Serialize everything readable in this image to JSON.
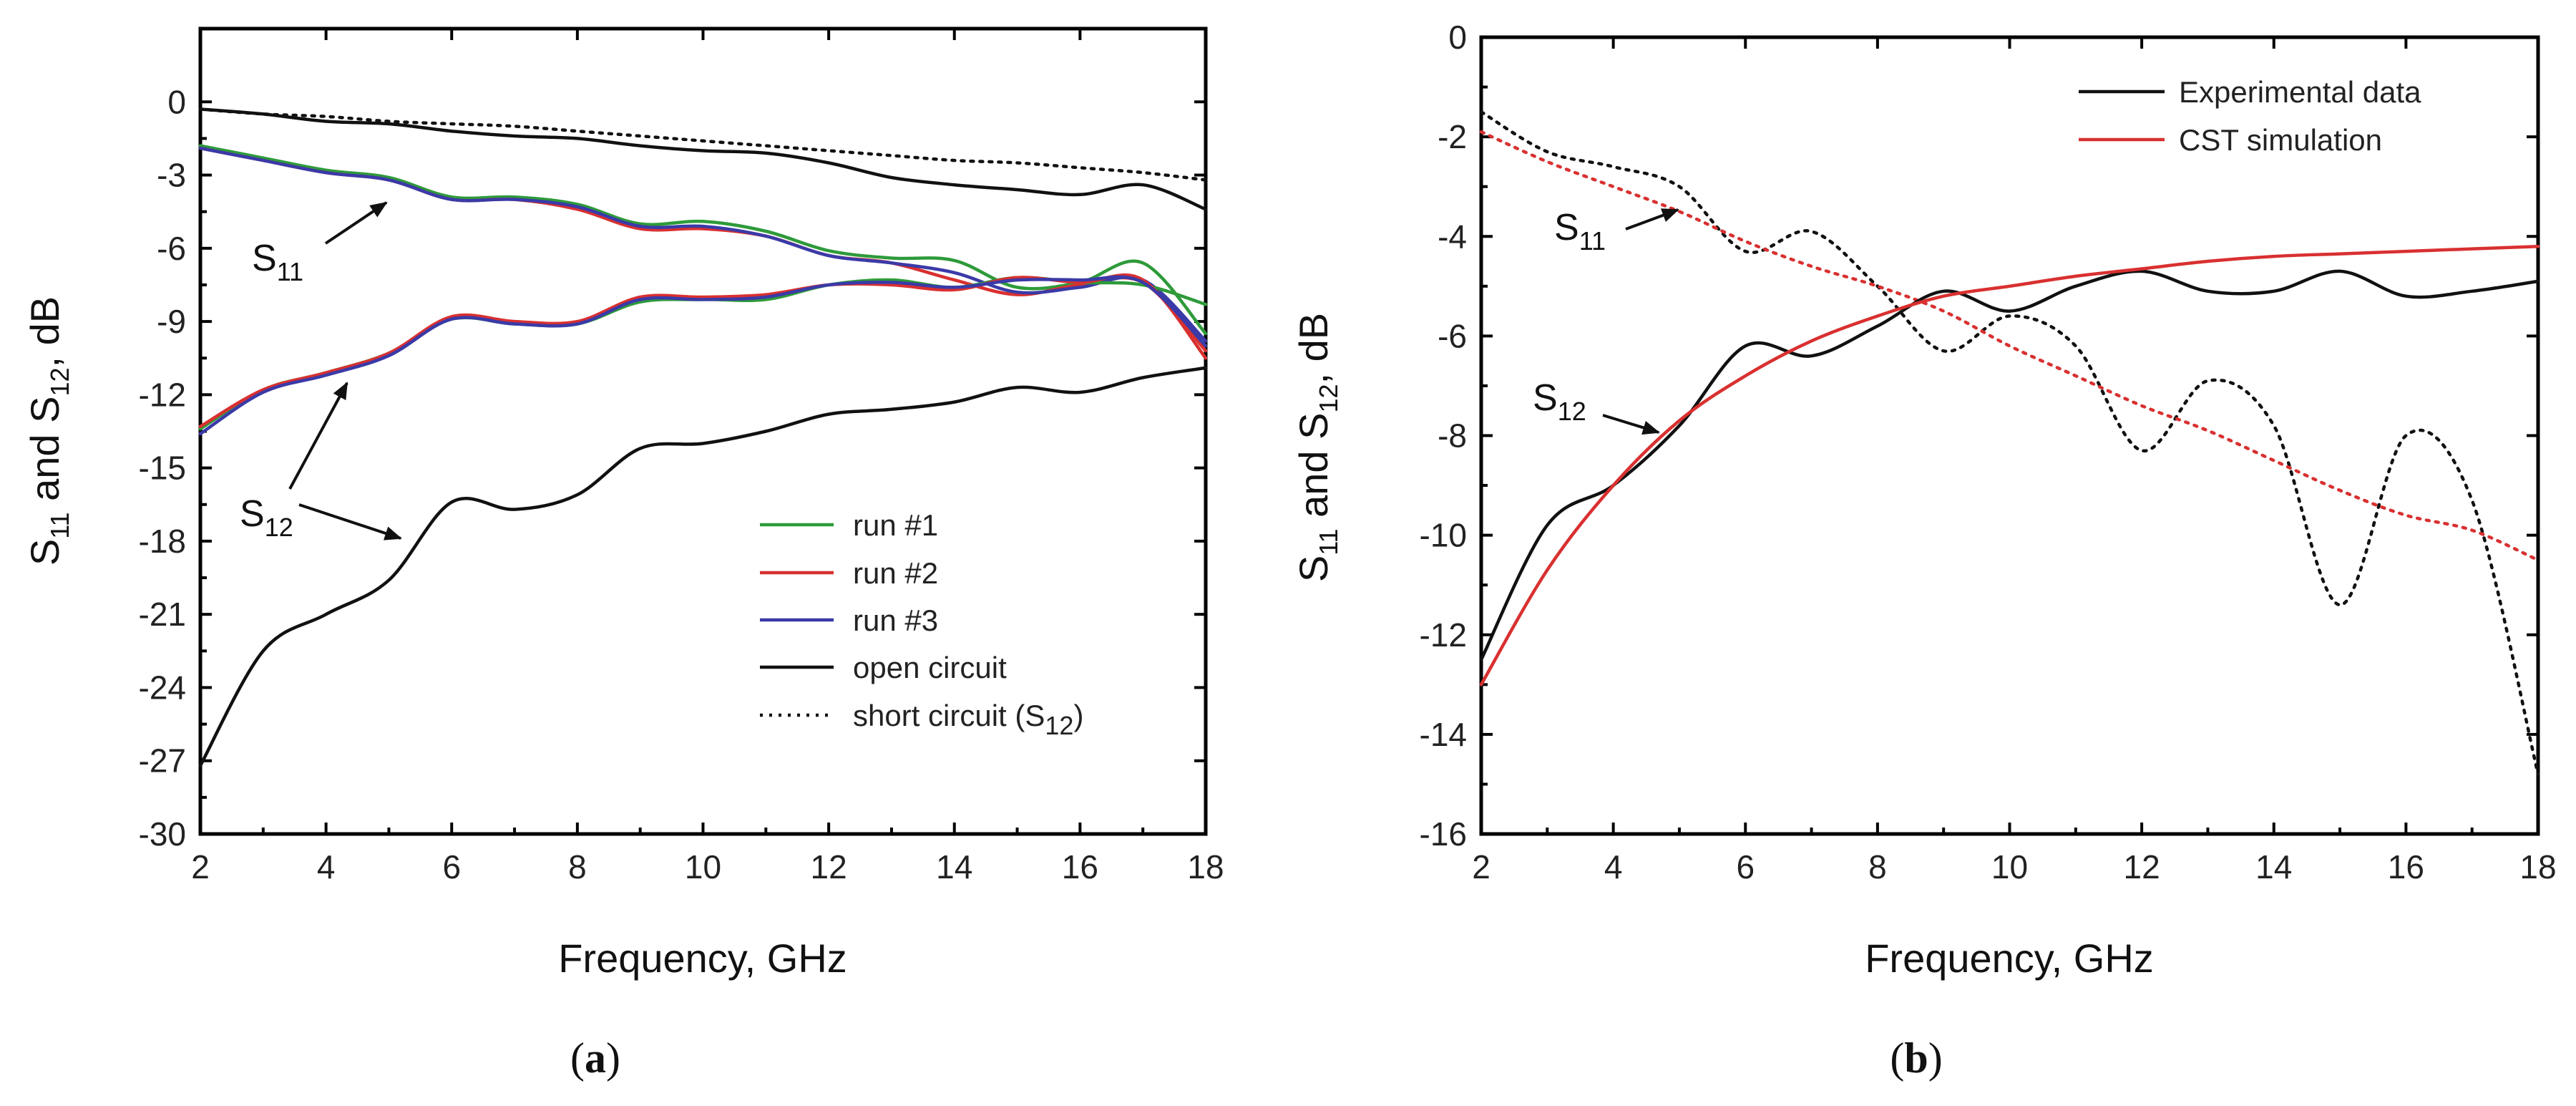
{
  "chart_data": [
    {
      "type": "line",
      "panel_label": "a",
      "xlabel": "Frequency, GHz",
      "ylabel": {
        "prefix": "S",
        "sub1": "11",
        "mid": " and S",
        "sub2": "12",
        "suffix": ", dB"
      },
      "xlim": [
        2,
        18
      ],
      "ylim": [
        -30,
        3
      ],
      "xticks": [
        "2",
        "4",
        "6",
        "8",
        "10",
        "12",
        "14",
        "16",
        "18"
      ],
      "yticks": [
        "0",
        "-3",
        "-6",
        "-9",
        "-12",
        "-15",
        "-18",
        "-21",
        "-24",
        "-27",
        "-30"
      ],
      "x": [
        2,
        3,
        4,
        5,
        6,
        7,
        8,
        9,
        10,
        11,
        12,
        13,
        14,
        15,
        16,
        17,
        18
      ],
      "series": [
        {
          "name": "run #1 (S11)",
          "color": "#2e9a3a",
          "style": "solid",
          "values": [
            -1.8,
            -2.3,
            -2.8,
            -3.1,
            -3.9,
            -3.9,
            -4.2,
            -5.0,
            -4.9,
            -5.3,
            -6.1,
            -6.4,
            -6.5,
            -7.6,
            -7.4,
            -6.6,
            -9.5
          ]
        },
        {
          "name": "run #2 (S11)",
          "color": "#d93030",
          "style": "solid",
          "values": [
            -1.9,
            -2.4,
            -2.9,
            -3.2,
            -4.0,
            -4.0,
            -4.4,
            -5.2,
            -5.2,
            -5.5,
            -6.3,
            -6.6,
            -7.3,
            -7.9,
            -7.5,
            -7.4,
            -10.2
          ]
        },
        {
          "name": "run #3 (S11)",
          "color": "#3a3aa8",
          "style": "solid",
          "values": [
            -1.9,
            -2.4,
            -2.9,
            -3.2,
            -4.0,
            -4.0,
            -4.3,
            -5.1,
            -5.1,
            -5.5,
            -6.3,
            -6.6,
            -7.0,
            -7.8,
            -7.6,
            -7.3,
            -9.8
          ]
        },
        {
          "name": "run #1 (S12)",
          "color": "#2e9a3a",
          "style": "solid",
          "values": [
            -13.4,
            -11.8,
            -11.1,
            -10.3,
            -8.9,
            -9.1,
            -9.1,
            -8.2,
            -8.1,
            -8.1,
            -7.5,
            -7.3,
            -7.6,
            -7.2,
            -7.4,
            -7.5,
            -8.3
          ]
        },
        {
          "name": "run #2 (S12)",
          "color": "#d93030",
          "style": "solid",
          "values": [
            -13.3,
            -11.8,
            -11.1,
            -10.3,
            -8.8,
            -9.0,
            -9.0,
            -8.0,
            -8.0,
            -7.9,
            -7.5,
            -7.5,
            -7.7,
            -7.2,
            -7.4,
            -7.3,
            -10.5
          ]
        },
        {
          "name": "run #3 (S12)",
          "color": "#3a3aa8",
          "style": "solid",
          "values": [
            -13.6,
            -11.9,
            -11.2,
            -10.4,
            -8.9,
            -9.1,
            -9.1,
            -8.1,
            -8.1,
            -8.0,
            -7.5,
            -7.4,
            -7.6,
            -7.3,
            -7.3,
            -7.4,
            -10.0
          ]
        },
        {
          "name": "open circuit (S11)",
          "color": "#111111",
          "style": "solid",
          "values": [
            -0.3,
            -0.5,
            -0.8,
            -0.9,
            -1.2,
            -1.4,
            -1.5,
            -1.8,
            -2.0,
            -2.1,
            -2.5,
            -3.1,
            -3.4,
            -3.6,
            -3.8,
            -3.4,
            -4.4
          ]
        },
        {
          "name": "open circuit (S12)",
          "color": "#111111",
          "style": "solid",
          "values": [
            -27.2,
            -22.5,
            -21.0,
            -19.6,
            -16.4,
            -16.7,
            -16.1,
            -14.2,
            -14.0,
            -13.5,
            -12.8,
            -12.6,
            -12.3,
            -11.7,
            -11.9,
            -11.3,
            -10.9
          ]
        },
        {
          "name": "short circuit (S12)",
          "color": "#111111",
          "style": "dotted",
          "values": [
            -0.3,
            -0.5,
            -0.6,
            -0.8,
            -0.9,
            -1.0,
            -1.2,
            -1.4,
            -1.6,
            -1.8,
            -2.0,
            -2.2,
            -2.4,
            -2.5,
            -2.7,
            -2.9,
            -3.2
          ]
        }
      ],
      "legend": [
        {
          "label": "run #1",
          "color": "#2e9a3a",
          "style": "solid"
        },
        {
          "label": "run #2",
          "color": "#d93030",
          "style": "solid"
        },
        {
          "label": "run #3",
          "color": "#3a3aa8",
          "style": "solid"
        },
        {
          "label": "open circuit",
          "color": "#111111",
          "style": "solid"
        },
        {
          "label": "short circuit (S",
          "sub": "12",
          "tail": ")",
          "color": "#111111",
          "style": "dotted"
        }
      ],
      "annotations": [
        {
          "base": "S",
          "sub": "11"
        },
        {
          "base": "S",
          "sub": "12"
        }
      ]
    },
    {
      "type": "line",
      "panel_label": "b",
      "xlabel": "Frequency, GHz",
      "ylabel": {
        "prefix": "S",
        "sub1": "11",
        "mid": " and S",
        "sub2": "12",
        "suffix": ", dB"
      },
      "xlim": [
        2,
        18
      ],
      "ylim": [
        -16,
        0
      ],
      "xticks": [
        "2",
        "4",
        "6",
        "8",
        "10",
        "12",
        "14",
        "16",
        "18"
      ],
      "yticks": [
        "0",
        "-2",
        "-4",
        "-6",
        "-8",
        "-10",
        "-12",
        "-14",
        "-16"
      ],
      "x": [
        2,
        3,
        4,
        5,
        6,
        7,
        8,
        9,
        10,
        11,
        12,
        13,
        14,
        15,
        16,
        17,
        18
      ],
      "series": [
        {
          "name": "Experimental data (S11)",
          "color": "#111111",
          "style": "dotted",
          "values": [
            -1.5,
            -2.3,
            -2.6,
            -3.0,
            -4.3,
            -3.9,
            -5.0,
            -6.3,
            -5.6,
            -6.2,
            -8.3,
            -6.9,
            -7.8,
            -11.4,
            -8.0,
            -9.3,
            -14.8
          ]
        },
        {
          "name": "CST simulation (S11)",
          "color": "#d93030",
          "style": "dotted",
          "values": [
            -1.9,
            -2.5,
            -3.0,
            -3.5,
            -4.1,
            -4.6,
            -5.0,
            -5.5,
            -6.2,
            -6.8,
            -7.4,
            -7.9,
            -8.5,
            -9.1,
            -9.6,
            -9.9,
            -10.5
          ]
        },
        {
          "name": "Experimental data (S12)",
          "color": "#111111",
          "style": "solid",
          "values": [
            -12.5,
            -9.8,
            -9.0,
            -7.8,
            -6.2,
            -6.4,
            -5.8,
            -5.1,
            -5.5,
            -5.0,
            -4.7,
            -5.1,
            -5.1,
            -4.7,
            -5.2,
            -5.1,
            -4.9
          ]
        },
        {
          "name": "CST simulation (S12)",
          "color": "#d93030",
          "style": "solid",
          "values": [
            -13.0,
            -10.7,
            -9.0,
            -7.7,
            -6.8,
            -6.1,
            -5.6,
            -5.2,
            -5.0,
            -4.8,
            -4.65,
            -4.5,
            -4.4,
            -4.35,
            -4.3,
            -4.25,
            -4.2
          ]
        }
      ],
      "legend": [
        {
          "label": "Experimental data",
          "color": "#111111",
          "style": "solid"
        },
        {
          "label": "CST simulation",
          "color": "#d93030",
          "style": "solid"
        }
      ],
      "annotations": [
        {
          "base": "S",
          "sub": "11"
        },
        {
          "base": "S",
          "sub": "12"
        }
      ]
    }
  ]
}
